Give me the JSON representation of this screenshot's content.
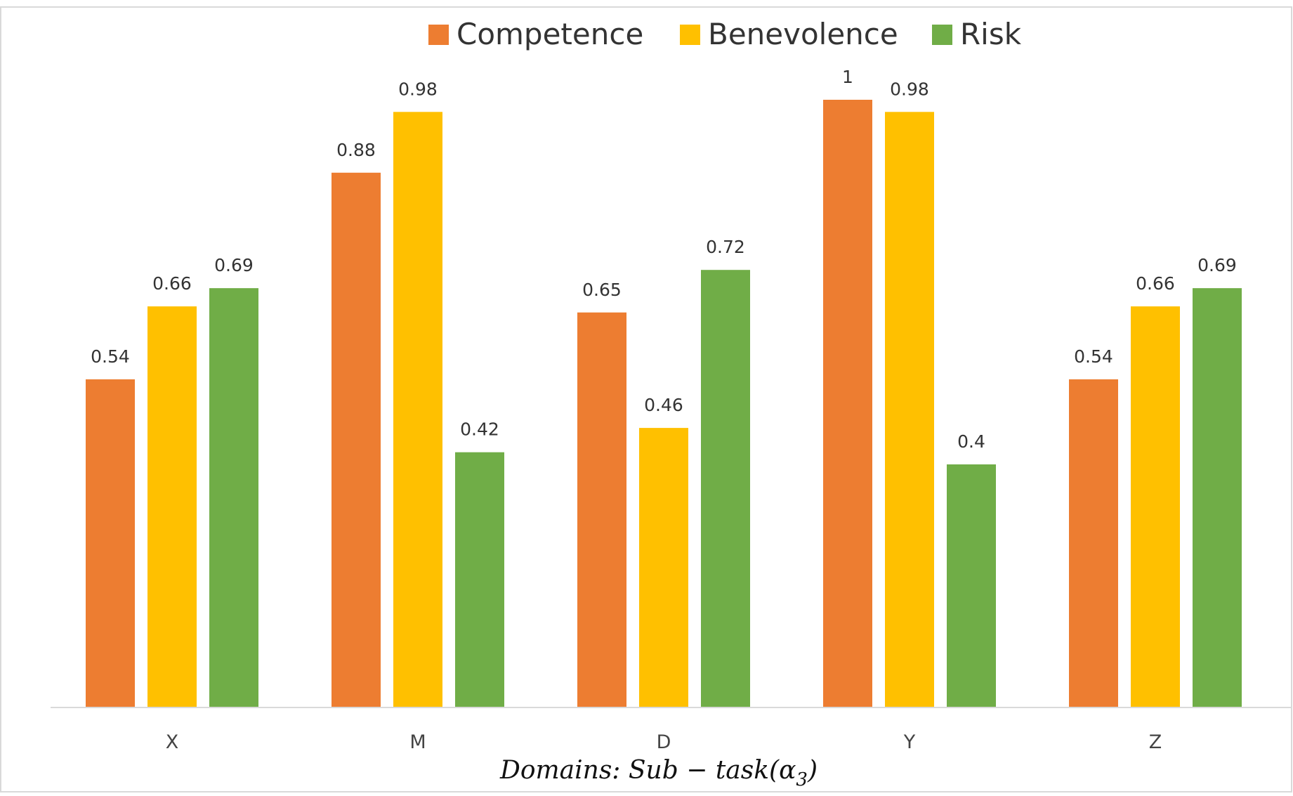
{
  "chart_data": {
    "type": "bar",
    "categories": [
      "X",
      "M",
      "D",
      "Y",
      "Z"
    ],
    "series": [
      {
        "name": "Competence",
        "color": "#ED7D31",
        "values": [
          0.54,
          0.88,
          0.65,
          1,
          0.54
        ]
      },
      {
        "name": "Benevolence",
        "color": "#FFC000",
        "values": [
          0.66,
          0.98,
          0.46,
          0.98,
          0.66
        ]
      },
      {
        "name": "Risk",
        "color": "#70AD47",
        "values": [
          0.69,
          0.42,
          0.72,
          0.4,
          0.69
        ]
      }
    ],
    "data_labels": [
      [
        "0.54",
        "0.88",
        "0.65",
        "1",
        "0.54"
      ],
      [
        "0.66",
        "0.98",
        "0.46",
        "0.98",
        "0.66"
      ],
      [
        "0.69",
        "0.42",
        "0.72",
        "0.4",
        "0.69"
      ]
    ],
    "title": "",
    "xlabel": "Domains: Sub − task(α",
    "xlabel_subscript": "3",
    "xlabel_close": ")",
    "ylabel": "",
    "ylim": [
      0,
      1
    ],
    "grid": false,
    "legend_position": "top-center"
  }
}
